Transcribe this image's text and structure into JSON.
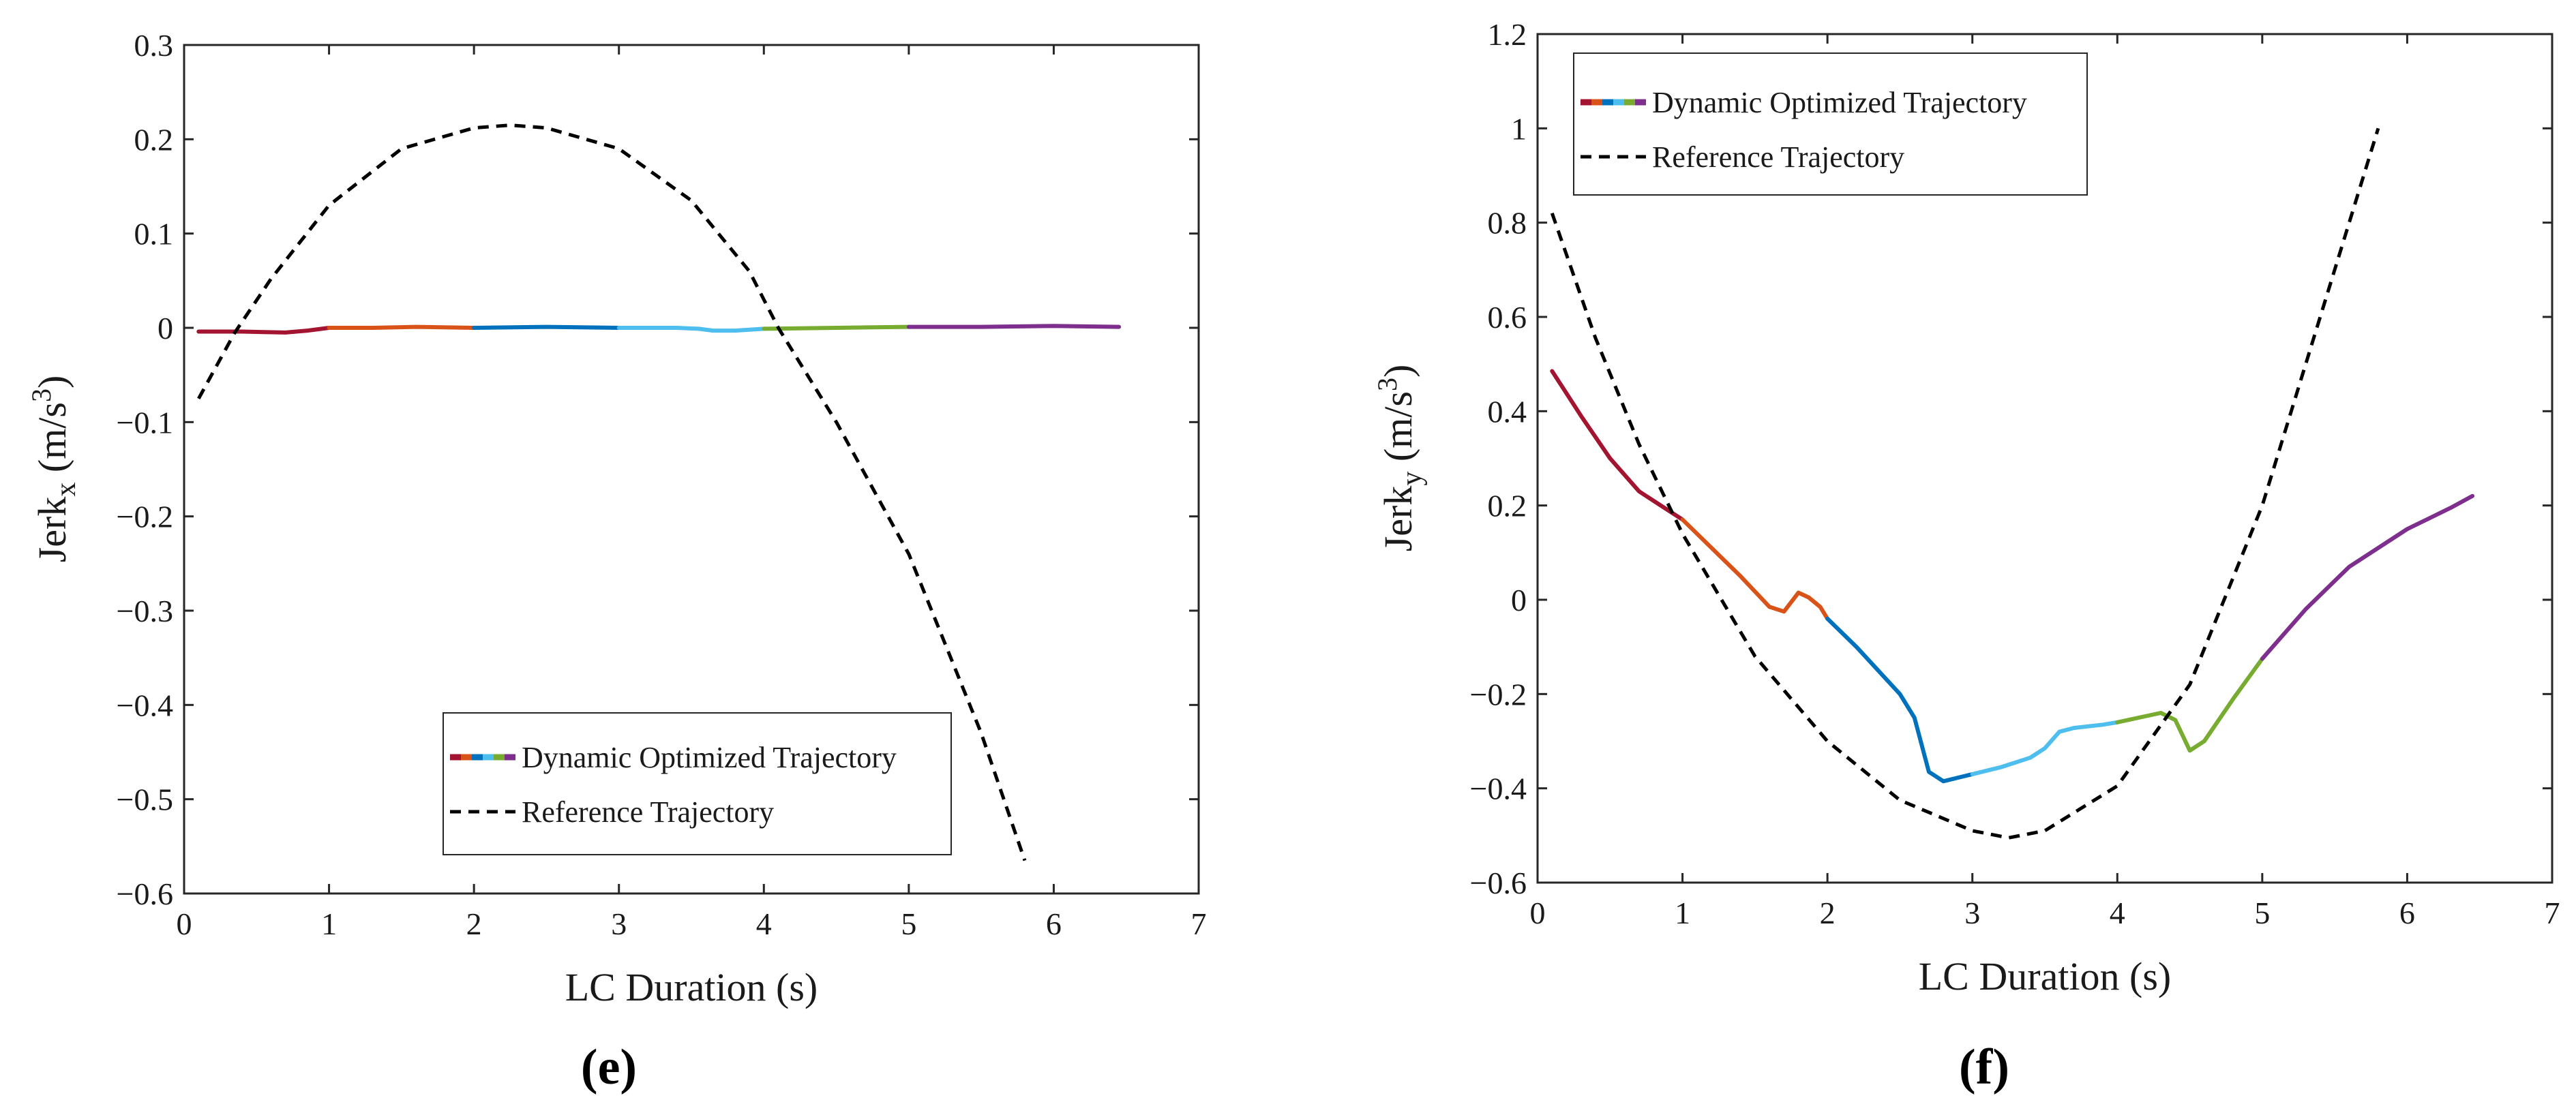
{
  "chart_data": [
    {
      "type": "line",
      "panel_label": "(e)",
      "xlabel": "LC Duration (s)",
      "ylabel": {
        "base": "Jerk",
        "sub": "x",
        "unit_pre": " (m/s",
        "sup": "3",
        "unit_post": ")"
      },
      "xlim": [
        0,
        7
      ],
      "ylim": [
        -0.6,
        0.3
      ],
      "xticks": [
        0,
        1,
        2,
        3,
        4,
        5,
        6,
        7
      ],
      "xtick_labels": [
        "0",
        "1",
        "2",
        "3",
        "4",
        "5",
        "6",
        "7"
      ],
      "yticks": [
        0.3,
        0.2,
        0.1,
        0,
        -0.1,
        -0.2,
        -0.3,
        -0.4,
        -0.5,
        -0.6
      ],
      "ytick_labels": [
        "0.3",
        "0.2",
        "0.1",
        "0",
        "−0.1",
        "−0.2",
        "−0.3",
        "−0.4",
        "−0.5",
        "−0.6"
      ],
      "grid": false,
      "legend": {
        "position": "bottom-right",
        "entries": [
          "Dynamic Optimized Trajectory",
          "Reference Trajectory"
        ]
      },
      "series": [
        {
          "name": "Dynamic Optimized Trajectory",
          "style": "solid",
          "segments": [
            {
              "color": "#A2142F",
              "points": [
                [
                  0.1,
                  -0.004
                ],
                [
                  0.4,
                  -0.004
                ],
                [
                  0.7,
                  -0.005
                ],
                [
                  0.85,
                  -0.003
                ],
                [
                  1.0,
                  0.0
                ]
              ]
            },
            {
              "color": "#D95319",
              "points": [
                [
                  1.0,
                  0.0
                ],
                [
                  1.3,
                  0.0
                ],
                [
                  1.6,
                  0.001
                ],
                [
                  2.0,
                  0.0
                ]
              ]
            },
            {
              "color": "#0072BD",
              "points": [
                [
                  2.0,
                  0.0
                ],
                [
                  2.5,
                  0.001
                ],
                [
                  3.0,
                  0.0
                ]
              ]
            },
            {
              "color": "#4DBEEE",
              "points": [
                [
                  3.0,
                  0.0
                ],
                [
                  3.4,
                  0.0
                ],
                [
                  3.55,
                  -0.001
                ],
                [
                  3.65,
                  -0.003
                ],
                [
                  3.8,
                  -0.003
                ],
                [
                  4.0,
                  -0.001
                ]
              ]
            },
            {
              "color": "#77AC30",
              "points": [
                [
                  4.0,
                  -0.001
                ],
                [
                  4.5,
                  0.0
                ],
                [
                  5.0,
                  0.001
                ]
              ]
            },
            {
              "color": "#7E2F8E",
              "points": [
                [
                  5.0,
                  0.001
                ],
                [
                  5.5,
                  0.001
                ],
                [
                  6.0,
                  0.002
                ],
                [
                  6.45,
                  0.001
                ]
              ]
            }
          ]
        },
        {
          "name": "Reference Trajectory",
          "style": "dashed",
          "color": "#000000",
          "points": [
            [
              0.1,
              -0.075
            ],
            [
              0.35,
              -0.005
            ],
            [
              0.6,
              0.052
            ],
            [
              1.0,
              0.13
            ],
            [
              1.5,
              0.19
            ],
            [
              2.0,
              0.212
            ],
            [
              2.25,
              0.215
            ],
            [
              2.5,
              0.212
            ],
            [
              3.0,
              0.19
            ],
            [
              3.5,
              0.135
            ],
            [
              3.9,
              0.06
            ],
            [
              4.1,
              0.0
            ],
            [
              4.5,
              -0.1
            ],
            [
              5.0,
              -0.24
            ],
            [
              5.5,
              -0.43
            ],
            [
              5.8,
              -0.565
            ]
          ]
        }
      ]
    },
    {
      "type": "line",
      "panel_label": "(f)",
      "xlabel": "LC Duration (s)",
      "ylabel": {
        "base": "Jerk",
        "sub": "y",
        "unit_pre": " (m/s",
        "sup": "3",
        "unit_post": ")"
      },
      "xlim": [
        0,
        7
      ],
      "ylim": [
        -0.6,
        1.2
      ],
      "xticks": [
        0,
        1,
        2,
        3,
        4,
        5,
        6,
        7
      ],
      "xtick_labels": [
        "0",
        "1",
        "2",
        "3",
        "4",
        "5",
        "6",
        "7"
      ],
      "yticks": [
        1.2,
        1.0,
        0.8,
        0.6,
        0.4,
        0.2,
        0,
        -0.2,
        -0.4,
        -0.6
      ],
      "ytick_labels": [
        "1.2",
        "1",
        "0.8",
        "0.6",
        "0.4",
        "0.2",
        "0",
        "−0.2",
        "−0.4",
        "−0.6"
      ],
      "grid": false,
      "legend": {
        "position": "top-left",
        "entries": [
          "Dynamic Optimized Trajectory",
          "Reference Trajectory"
        ]
      },
      "series": [
        {
          "name": "Dynamic Optimized Trajectory",
          "style": "solid",
          "segments": [
            {
              "color": "#A2142F",
              "points": [
                [
                  0.1,
                  0.485
                ],
                [
                  0.3,
                  0.39
                ],
                [
                  0.5,
                  0.3
                ],
                [
                  0.7,
                  0.23
                ],
                [
                  0.85,
                  0.2
                ],
                [
                  1.0,
                  0.17
                ]
              ]
            },
            {
              "color": "#D95319",
              "points": [
                [
                  1.0,
                  0.17
                ],
                [
                  1.2,
                  0.11
                ],
                [
                  1.4,
                  0.05
                ],
                [
                  1.6,
                  -0.015
                ],
                [
                  1.7,
                  -0.025
                ],
                [
                  1.8,
                  0.015
                ],
                [
                  1.87,
                  0.005
                ],
                [
                  1.95,
                  -0.015
                ],
                [
                  2.0,
                  -0.04
                ]
              ]
            },
            {
              "color": "#0072BD",
              "points": [
                [
                  2.0,
                  -0.04
                ],
                [
                  2.2,
                  -0.1
                ],
                [
                  2.5,
                  -0.2
                ],
                [
                  2.6,
                  -0.25
                ],
                [
                  2.7,
                  -0.365
                ],
                [
                  2.8,
                  -0.385
                ],
                [
                  3.0,
                  -0.37
                ]
              ]
            },
            {
              "color": "#4DBEEE",
              "points": [
                [
                  3.0,
                  -0.37
                ],
                [
                  3.2,
                  -0.355
                ],
                [
                  3.4,
                  -0.335
                ],
                [
                  3.5,
                  -0.315
                ],
                [
                  3.6,
                  -0.28
                ],
                [
                  3.7,
                  -0.272
                ],
                [
                  3.9,
                  -0.265
                ],
                [
                  4.0,
                  -0.26
                ]
              ]
            },
            {
              "color": "#77AC30",
              "points": [
                [
                  4.0,
                  -0.26
                ],
                [
                  4.3,
                  -0.24
                ],
                [
                  4.4,
                  -0.255
                ],
                [
                  4.5,
                  -0.32
                ],
                [
                  4.6,
                  -0.3
                ],
                [
                  4.8,
                  -0.21
                ],
                [
                  5.0,
                  -0.125
                ]
              ]
            },
            {
              "color": "#7E2F8E",
              "points": [
                [
                  5.0,
                  -0.125
                ],
                [
                  5.3,
                  -0.02
                ],
                [
                  5.6,
                  0.07
                ],
                [
                  6.0,
                  0.15
                ],
                [
                  6.3,
                  0.195
                ],
                [
                  6.45,
                  0.22
                ]
              ]
            }
          ]
        },
        {
          "name": "Reference Trajectory",
          "style": "dashed",
          "color": "#000000",
          "points": [
            [
              0.1,
              0.82
            ],
            [
              0.4,
              0.555
            ],
            [
              0.7,
              0.33
            ],
            [
              1.0,
              0.14
            ],
            [
              1.5,
              -0.12
            ],
            [
              2.0,
              -0.3
            ],
            [
              2.5,
              -0.425
            ],
            [
              3.0,
              -0.49
            ],
            [
              3.25,
              -0.505
            ],
            [
              3.5,
              -0.49
            ],
            [
              4.0,
              -0.395
            ],
            [
              4.5,
              -0.18
            ],
            [
              5.0,
              0.2
            ],
            [
              5.5,
              0.7
            ],
            [
              5.8,
              1.0
            ]
          ]
        }
      ]
    }
  ]
}
